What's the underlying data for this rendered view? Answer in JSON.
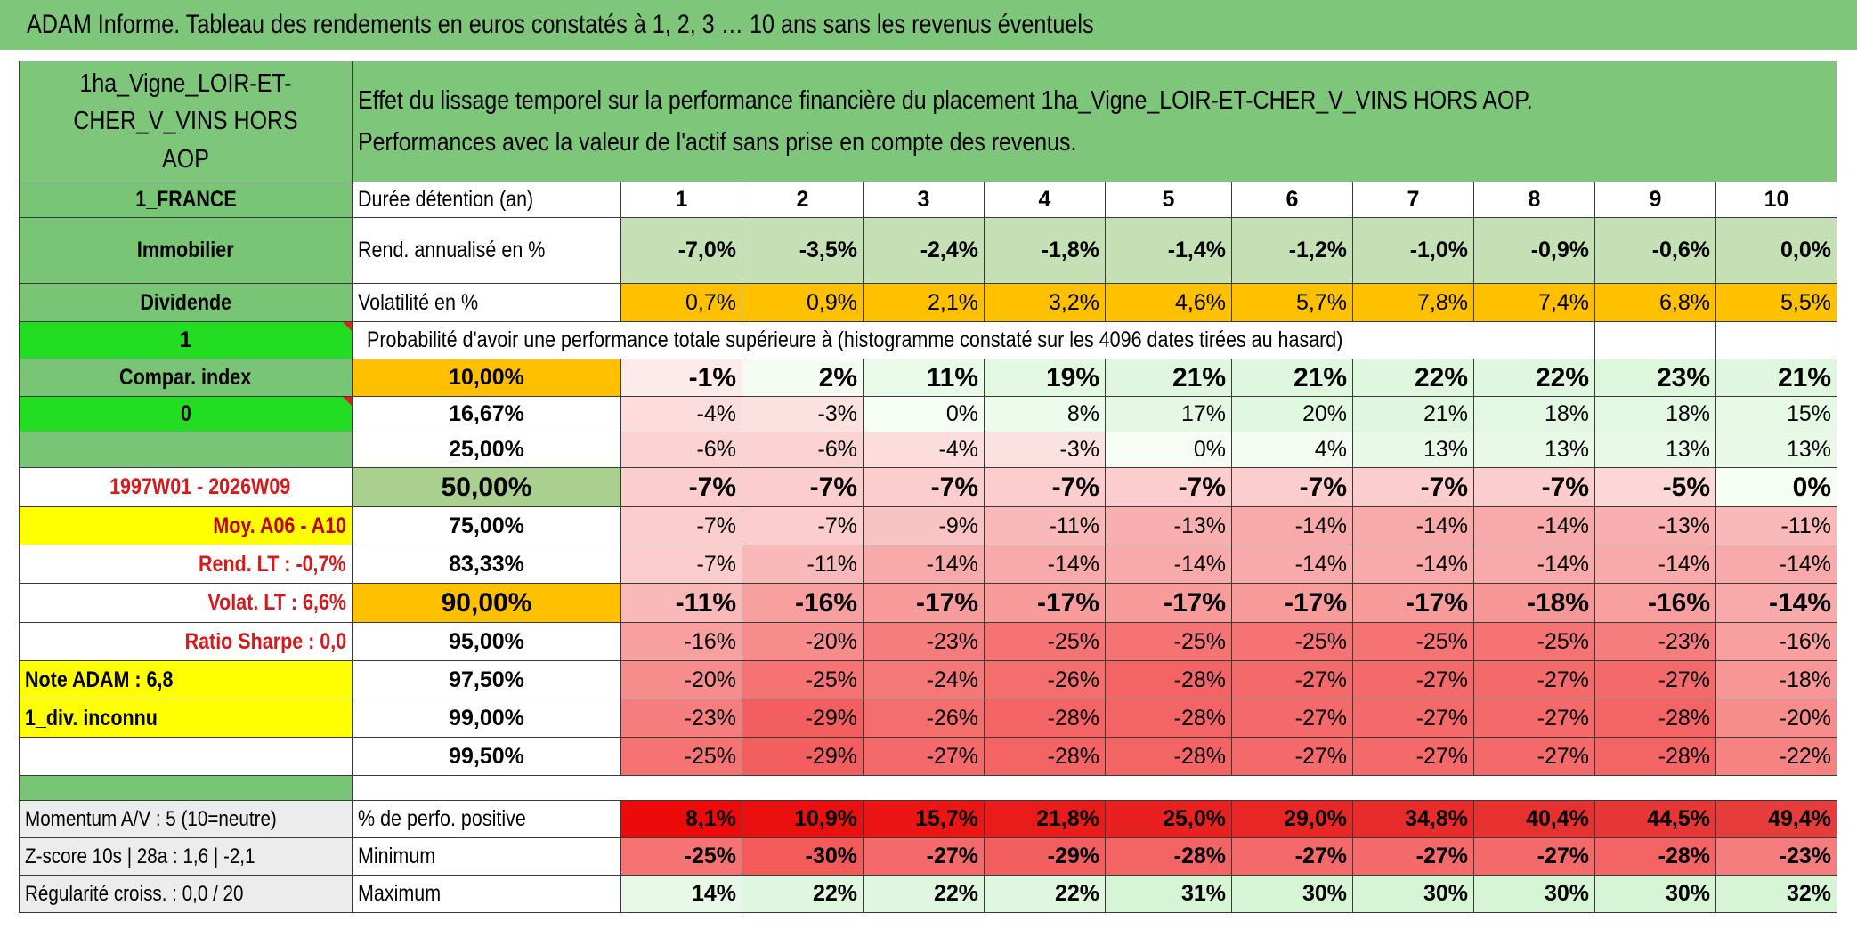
{
  "title": "ADAM Informe. Tableau des rendements en euros constatés à 1, 2, 3 … 10 ans sans les revenus éventuels",
  "asset": {
    "name": "1ha_Vigne_LOIR-ET-CHER_V_VINS HORS AOP",
    "description_line1": "Effet du lissage temporel sur la performance financière du placement 1ha_Vigne_LOIR-ET-CHER_V_VINS HORS AOP.",
    "description_line2": "Performances avec la valeur de l'actif sans prise en compte des revenus."
  },
  "sidebar": {
    "country": "1_FRANCE",
    "category": "Immobilier",
    "type": "Dividende",
    "flag1": "1",
    "compar_index": "Compar. index",
    "flag2": "0",
    "period": "1997W01 - 2026W09",
    "moyenne": "Moy. A06 - A10",
    "rend_lt": "Rend. LT :   -0,7%",
    "volat_lt": "Volat. LT :   6,6%",
    "sharpe": "Ratio Sharpe :    0,0",
    "note": "Note ADAM : 6,8",
    "div": "1_div. inconnu",
    "momentum": "Momentum A/V : 5 (10=neutre)",
    "zscore": "Z-score 10s | 28a : 1,6 | -2,1",
    "regularite": "Régularité croiss. : 0,0 / 20"
  },
  "table": {
    "duration_label": "Durée détention (an)",
    "durations": [
      "1",
      "2",
      "3",
      "4",
      "5",
      "6",
      "7",
      "8",
      "9",
      "10"
    ],
    "rend_label": "Rend. annualisé en %",
    "rend": [
      "-7,0%",
      "-3,5%",
      "-2,4%",
      "-1,8%",
      "-1,4%",
      "-1,2%",
      "-1,0%",
      "-0,9%",
      "-0,6%",
      "0,0%"
    ],
    "vol_label": "Volatilité en %",
    "vol": [
      "0,7%",
      "0,9%",
      "2,1%",
      "3,2%",
      "4,6%",
      "5,7%",
      "7,8%",
      "7,4%",
      "6,8%",
      "5,5%"
    ],
    "proba_header": "Probabilité d'avoir une performance totale supérieure à (histogramme constaté sur les 4096 dates tirées au hasard)",
    "quantiles": [
      {
        "label": "10,00%",
        "values": [
          "-1%",
          "2%",
          "11%",
          "19%",
          "21%",
          "21%",
          "22%",
          "22%",
          "23%",
          "21%"
        ]
      },
      {
        "label": "16,67%",
        "values": [
          "-4%",
          "-3%",
          "0%",
          "8%",
          "17%",
          "20%",
          "21%",
          "18%",
          "18%",
          "15%"
        ]
      },
      {
        "label": "25,00%",
        "values": [
          "-6%",
          "-6%",
          "-4%",
          "-3%",
          "0%",
          "4%",
          "13%",
          "13%",
          "13%",
          "13%"
        ]
      },
      {
        "label": "50,00%",
        "values": [
          "-7%",
          "-7%",
          "-7%",
          "-7%",
          "-7%",
          "-7%",
          "-7%",
          "-7%",
          "-5%",
          "0%"
        ]
      },
      {
        "label": "75,00%",
        "values": [
          "-7%",
          "-7%",
          "-9%",
          "-11%",
          "-13%",
          "-14%",
          "-14%",
          "-14%",
          "-13%",
          "-11%"
        ]
      },
      {
        "label": "83,33%",
        "values": [
          "-7%",
          "-11%",
          "-14%",
          "-14%",
          "-14%",
          "-14%",
          "-14%",
          "-14%",
          "-14%",
          "-14%"
        ]
      },
      {
        "label": "90,00%",
        "values": [
          "-11%",
          "-16%",
          "-17%",
          "-17%",
          "-17%",
          "-17%",
          "-17%",
          "-18%",
          "-16%",
          "-14%"
        ]
      },
      {
        "label": "95,00%",
        "values": [
          "-16%",
          "-20%",
          "-23%",
          "-25%",
          "-25%",
          "-25%",
          "-25%",
          "-25%",
          "-23%",
          "-16%"
        ]
      },
      {
        "label": "97,50%",
        "values": [
          "-20%",
          "-25%",
          "-24%",
          "-26%",
          "-28%",
          "-27%",
          "-27%",
          "-27%",
          "-27%",
          "-18%"
        ]
      },
      {
        "label": "99,00%",
        "values": [
          "-23%",
          "-29%",
          "-26%",
          "-28%",
          "-28%",
          "-27%",
          "-27%",
          "-27%",
          "-28%",
          "-20%"
        ]
      },
      {
        "label": "99,50%",
        "values": [
          "-25%",
          "-29%",
          "-27%",
          "-28%",
          "-28%",
          "-27%",
          "-27%",
          "-27%",
          "-28%",
          "-22%"
        ]
      }
    ],
    "positive_label": "% de perfo. positive",
    "positive": [
      "8,1%",
      "10,9%",
      "15,7%",
      "21,8%",
      "25,0%",
      "29,0%",
      "34,8%",
      "40,4%",
      "44,5%",
      "49,4%"
    ],
    "min_label": "Minimum",
    "min": [
      "-25%",
      "-30%",
      "-27%",
      "-29%",
      "-28%",
      "-27%",
      "-27%",
      "-27%",
      "-28%",
      "-23%"
    ],
    "max_label": "Maximum",
    "max": [
      "14%",
      "22%",
      "22%",
      "22%",
      "31%",
      "30%",
      "30%",
      "30%",
      "30%",
      "32%"
    ]
  },
  "colors": {
    "header_green": "#7dc67a",
    "bright_green": "#22dd22",
    "orange": "#ffc000",
    "yellow": "#ffff00",
    "red_text": "#d7191c"
  }
}
